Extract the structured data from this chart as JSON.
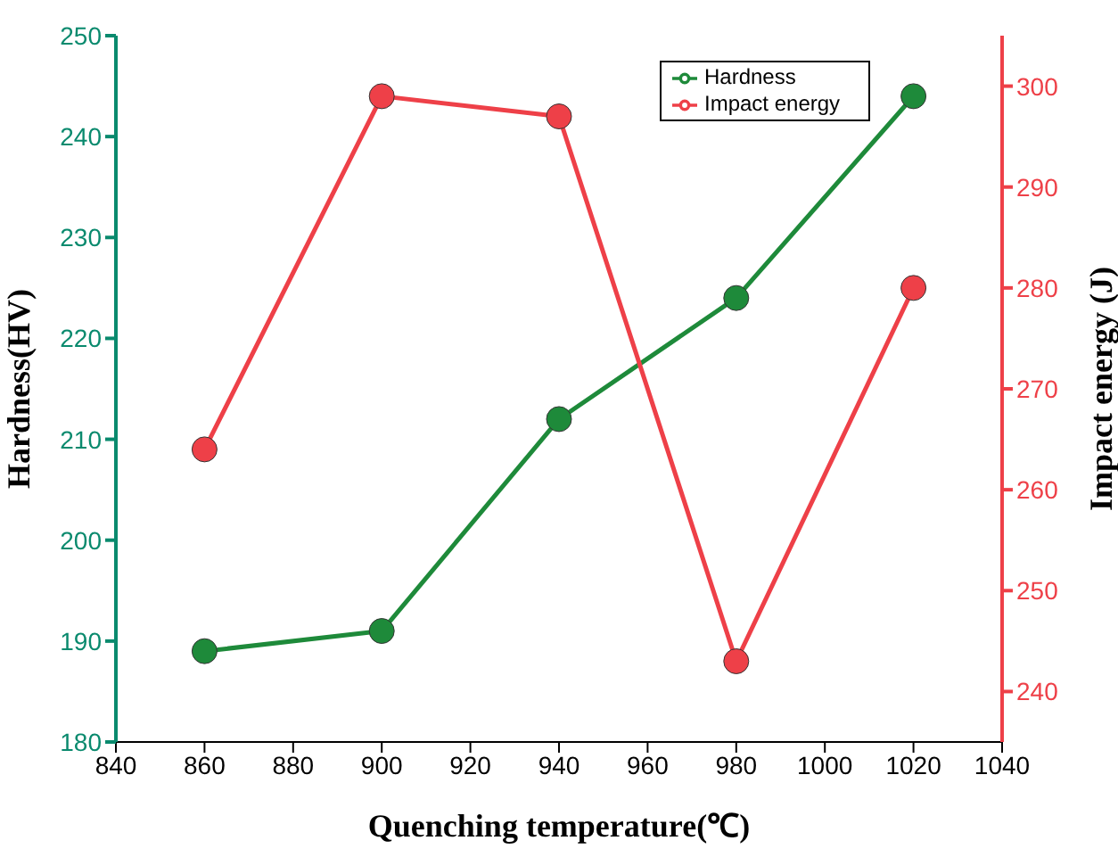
{
  "chart_data": {
    "type": "line",
    "xlabel": "Quenching temperature(℃)",
    "ylabel": "Hardness(HV)",
    "y2label": "Impact energy (J)",
    "x": [
      860,
      900,
      940,
      980,
      1020
    ],
    "series": [
      {
        "name": "Hardness",
        "color": "#1e8a3a",
        "values": [
          189,
          191,
          212,
          224,
          244
        ]
      },
      {
        "name": "Impact energy",
        "color": "#ee4048",
        "values": [
          264,
          299,
          297,
          243,
          280
        ],
        "axis": "y2"
      }
    ],
    "xlim": [
      840,
      1040
    ],
    "xticks": [
      840,
      860,
      880,
      900,
      920,
      940,
      960,
      980,
      1000,
      1020,
      1040
    ],
    "ylim": [
      180,
      250
    ],
    "yticks": [
      180,
      190,
      200,
      210,
      220,
      230,
      240,
      250
    ],
    "y2lim": [
      235,
      305
    ],
    "y2ticks": [
      240,
      250,
      260,
      270,
      280,
      290,
      300
    ],
    "marker": "circle",
    "line_style": "solid",
    "grid": false,
    "legend": "top right"
  }
}
